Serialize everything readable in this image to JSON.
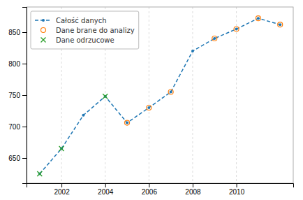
{
  "chart_data": {
    "type": "line",
    "series": [
      {
        "name": "Całość danych",
        "type": "line",
        "line_style": "dashed",
        "marker": "dot",
        "x": [
          2001,
          2002,
          2003,
          2004,
          2005,
          2006,
          2007,
          2008,
          2009,
          2010,
          2011,
          2012
        ],
        "values": [
          625,
          665,
          718,
          748,
          706,
          730,
          755,
          820,
          840,
          855,
          872,
          862
        ]
      },
      {
        "name": "Dane brane do analizy",
        "type": "scatter",
        "marker": "circle",
        "x": [
          2005,
          2006,
          2007,
          2009,
          2010,
          2011,
          2012
        ],
        "values": [
          706,
          730,
          755,
          840,
          855,
          872,
          862
        ]
      },
      {
        "name": "Dane odrzucowe",
        "type": "scatter",
        "marker": "cross",
        "x": [
          2001,
          2002,
          2004
        ],
        "values": [
          625,
          665,
          748
        ]
      }
    ],
    "xlim": [
      2000.4,
      2012.6
    ],
    "xticks": [
      2002,
      2004,
      2006,
      2008,
      2010
    ],
    "ylim": [
      610,
      890
    ],
    "yticks": [
      650,
      700,
      750,
      800,
      850
    ],
    "grid": "x",
    "legend": "upper left"
  }
}
